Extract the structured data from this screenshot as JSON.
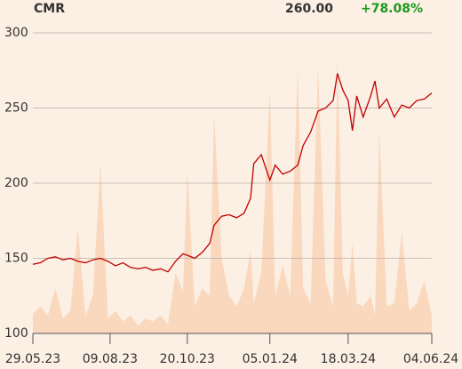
{
  "header": {
    "ticker": "CMR",
    "price": "260.00",
    "change": "+78.08%"
  },
  "chart_data": {
    "type": "line",
    "x": [
      "2023-05-29",
      "2023-06-05",
      "2023-06-12",
      "2023-06-19",
      "2023-06-26",
      "2023-07-03",
      "2023-07-10",
      "2023-07-17",
      "2023-07-24",
      "2023-07-31",
      "2023-08-07",
      "2023-08-14",
      "2023-08-21",
      "2023-08-28",
      "2023-09-04",
      "2023-09-11",
      "2023-09-18",
      "2023-09-25",
      "2023-10-02",
      "2023-10-09",
      "2023-10-16",
      "2023-10-20",
      "2023-10-27",
      "2023-11-03",
      "2023-11-10",
      "2023-11-14",
      "2023-11-21",
      "2023-11-28",
      "2023-12-05",
      "2023-12-12",
      "2023-12-18",
      "2023-12-21",
      "2023-12-28",
      "2024-01-05",
      "2024-01-10",
      "2024-01-17",
      "2024-01-24",
      "2024-01-31",
      "2024-02-05",
      "2024-02-12",
      "2024-02-19",
      "2024-02-26",
      "2024-03-04",
      "2024-03-08",
      "2024-03-13",
      "2024-03-18",
      "2024-03-22",
      "2024-03-26",
      "2024-04-01",
      "2024-04-08",
      "2024-04-12",
      "2024-04-16",
      "2024-04-23",
      "2024-04-30",
      "2024-05-07",
      "2024-05-14",
      "2024-05-21",
      "2024-05-28",
      "2024-06-04"
    ],
    "values": [
      146,
      147,
      150,
      151,
      149,
      150,
      148,
      147,
      149,
      150,
      148,
      145,
      147,
      144,
      143,
      144,
      142,
      143,
      141,
      148,
      153,
      152,
      150,
      154,
      160,
      172,
      178,
      179,
      177,
      180,
      190,
      213,
      219,
      202,
      212,
      206,
      208,
      212,
      225,
      234,
      248,
      250,
      255,
      273,
      262,
      255,
      235,
      258,
      244,
      258,
      268,
      250,
      256,
      244,
      252,
      250,
      255,
      256,
      260
    ],
    "color": "#c00000",
    "volumes": [
      113,
      118,
      112,
      130,
      110,
      115,
      170,
      112,
      125,
      213,
      110,
      115,
      108,
      112,
      105,
      110,
      108,
      112,
      106,
      140,
      128,
      208,
      118,
      130,
      125,
      245,
      150,
      125,
      118,
      130,
      155,
      120,
      140,
      262,
      125,
      145,
      125,
      278,
      130,
      120,
      277,
      135,
      118,
      283,
      140,
      125,
      160,
      120,
      118,
      125,
      112,
      235,
      118,
      120,
      167,
      115,
      120,
      135,
      112
    ],
    "volume_color": "#f9d8bd",
    "xlim": [
      "2023-05-29",
      "2024-06-04"
    ],
    "xticks": [
      {
        "value": "2023-05-29",
        "label": "29.05.23"
      },
      {
        "value": "2023-08-09",
        "label": "09.08.23"
      },
      {
        "value": "2023-10-20",
        "label": "20.10.23"
      },
      {
        "value": "2024-01-05",
        "label": "05.01.24"
      },
      {
        "value": "2024-03-18",
        "label": "18.03.24"
      },
      {
        "value": "2024-06-04",
        "label": "04.06.24"
      }
    ],
    "ylim": [
      100,
      300
    ],
    "yticks": [
      100,
      150,
      200,
      250,
      300
    ],
    "grid": true
  }
}
